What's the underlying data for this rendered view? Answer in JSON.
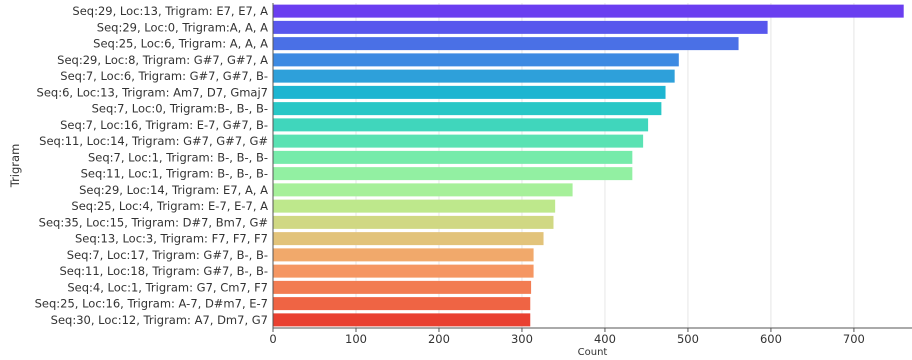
{
  "chart_data": {
    "type": "bar",
    "orientation": "horizontal",
    "title": "",
    "xlabel": "Count",
    "ylabel": "Trigram",
    "xlim": [
      0,
      770
    ],
    "xticks": [
      0,
      100,
      200,
      300,
      400,
      500,
      600,
      700
    ],
    "grid": "vertical",
    "categories": [
      "Seq:29, Loc:13, Trigram: E7,  E7,  A",
      "Seq:29, Loc:0, Trigram:A,  A,  A",
      "Seq:25, Loc:6, Trigram: A,  A,  A",
      "Seq:29, Loc:8, Trigram: G#7,  G#7,  A",
      "Seq:7, Loc:6, Trigram: G#7,  G#7,  B-",
      "Seq:6, Loc:13, Trigram: Am7,  D7,  Gmaj7",
      "Seq:7, Loc:0, Trigram:B-,  B-,  B-",
      "Seq:7, Loc:16, Trigram: E-7,  G#7,  B-",
      "Seq:11, Loc:14, Trigram: G#7,  G#7,  G#",
      "Seq:7, Loc:1, Trigram: B-,  B-,  B-",
      "Seq:11, Loc:1, Trigram: B-,  B-,  B-",
      "Seq:29, Loc:14, Trigram: E7,  A,  A",
      "Seq:25, Loc:4, Trigram: E-7,  E-7,  A",
      "Seq:35, Loc:15, Trigram: D#7,  Bm7,  G#",
      "Seq:13, Loc:3, Trigram: F7,  F7,  F7",
      "Seq:7, Loc:17, Trigram: G#7,  B-,  B-",
      "Seq:11, Loc:18, Trigram: G#7,  B-,  B-",
      "Seq:4, Loc:1, Trigram: G7,  Cm7,  F7",
      "Seq:25, Loc:16, Trigram: A-7,  D#m7,  E-7",
      "Seq:30, Loc:12, Trigram: A7,  Dm7,  G7"
    ],
    "values": [
      760,
      596,
      561,
      489,
      484,
      473,
      468,
      452,
      446,
      433,
      433,
      361,
      340,
      338,
      326,
      314,
      314,
      311,
      310,
      310
    ],
    "colors": [
      "#6a3ef0",
      "#5857ed",
      "#4a70e6",
      "#3d8ae2",
      "#2ea0da",
      "#1db5d1",
      "#28c7c6",
      "#40d6bc",
      "#5ae2b3",
      "#76ebaa",
      "#92f0a2",
      "#a6f09a",
      "#bee88c",
      "#d0d883",
      "#e2c37a",
      "#f1a96b",
      "#f59662",
      "#f27c52",
      "#ef6444",
      "#e94030"
    ]
  }
}
